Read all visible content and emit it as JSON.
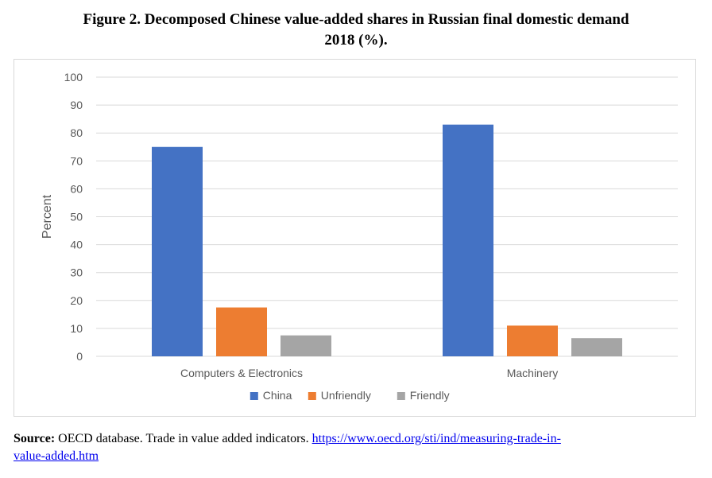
{
  "page": {
    "title_line1": "Figure 2. Decomposed Chinese value-added shares in Russian final domestic demand",
    "title_line2": "2018 (%).",
    "source_label": "Source:",
    "source_text": " OECD database. Trade in value added indicators. ",
    "source_link_line1": "https://www.oecd.org/sti/ind/measuring-trade-in-",
    "source_link_line2": "value-added.htm"
  },
  "chart_data": {
    "type": "bar",
    "categories": [
      "Computers & Electronics",
      "Machinery"
    ],
    "series": [
      {
        "name": "China",
        "values": [
          75,
          83
        ],
        "color": "#4472c4"
      },
      {
        "name": "Unfriendly",
        "values": [
          17.5,
          11
        ],
        "color": "#ed7d31"
      },
      {
        "name": "Friendly",
        "values": [
          7.5,
          6.5
        ],
        "color": "#a5a5a5"
      }
    ],
    "title": "",
    "xlabel": "",
    "ylabel": "Percent",
    "ylim": [
      0,
      100
    ],
    "yticks": [
      "0",
      "10",
      "20",
      "30",
      "40",
      "50",
      "60",
      "70",
      "80",
      "90",
      "100"
    ],
    "grid": true,
    "legend_position": "bottom"
  }
}
